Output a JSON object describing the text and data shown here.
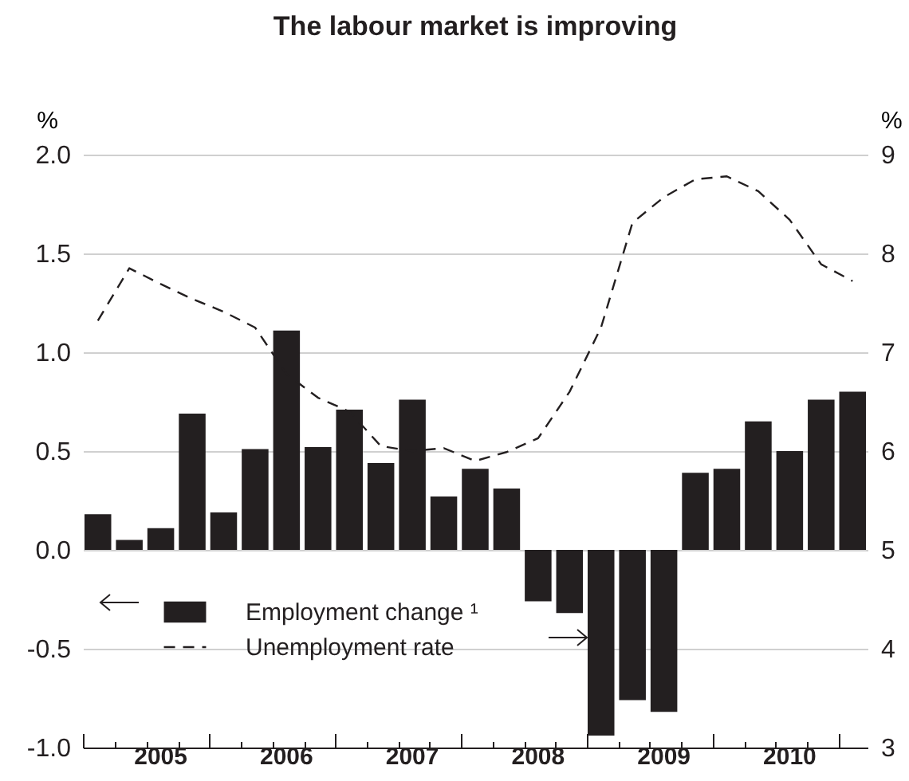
{
  "chart_data": {
    "type": "bar",
    "title": "The labour market is improving",
    "ylabel": "%",
    "y2label": "%",
    "categories": [
      null,
      null,
      "2005",
      null,
      null,
      null,
      "2006",
      null,
      null,
      null,
      "2007",
      null,
      null,
      null,
      "2008",
      null,
      null,
      null,
      "2009",
      null,
      null,
      null,
      "2010",
      null,
      null
    ],
    "series": [
      {
        "name": "Employment change ¹",
        "color": "#231f20",
        "values": [
          0.18,
          0.05,
          0.11,
          0.69,
          0.19,
          0.51,
          1.11,
          0.52,
          0.71,
          0.44,
          0.76,
          0.27,
          0.41,
          0.31,
          -0.26,
          -0.32,
          -0.94,
          -0.76,
          -0.82,
          0.39,
          0.41,
          0.65,
          0.5,
          0.76,
          0.8
        ]
      },
      {
        "name": "Unemployment rate",
        "type": "line",
        "axis": "y2",
        "color": "#231f20",
        "line_style": "dashed",
        "values": [
          7.32,
          7.85,
          7.69,
          7.54,
          7.41,
          7.25,
          6.78,
          6.54,
          6.4,
          6.05,
          6.0,
          6.03,
          5.9,
          5.99,
          6.13,
          6.6,
          7.25,
          8.31,
          8.57,
          8.75,
          8.78,
          8.63,
          8.34,
          7.89,
          7.72
        ]
      }
    ],
    "ylim": [
      -1,
      2
    ],
    "yticks": [
      {
        "value": -1,
        "label": "-1.0"
      },
      {
        "value": -0.5,
        "label": "-0.5"
      },
      {
        "value": 0,
        "label": "0.0"
      },
      0.5,
      {
        "value": 1,
        "label": "1.0"
      },
      1.5,
      {
        "value": 2,
        "label": "2.0"
      }
    ],
    "y2lim": [
      3,
      9
    ],
    "y2ticks": [
      3,
      4,
      5,
      6,
      7,
      8,
      9
    ],
    "grid": "y",
    "legend": "bottom left"
  }
}
